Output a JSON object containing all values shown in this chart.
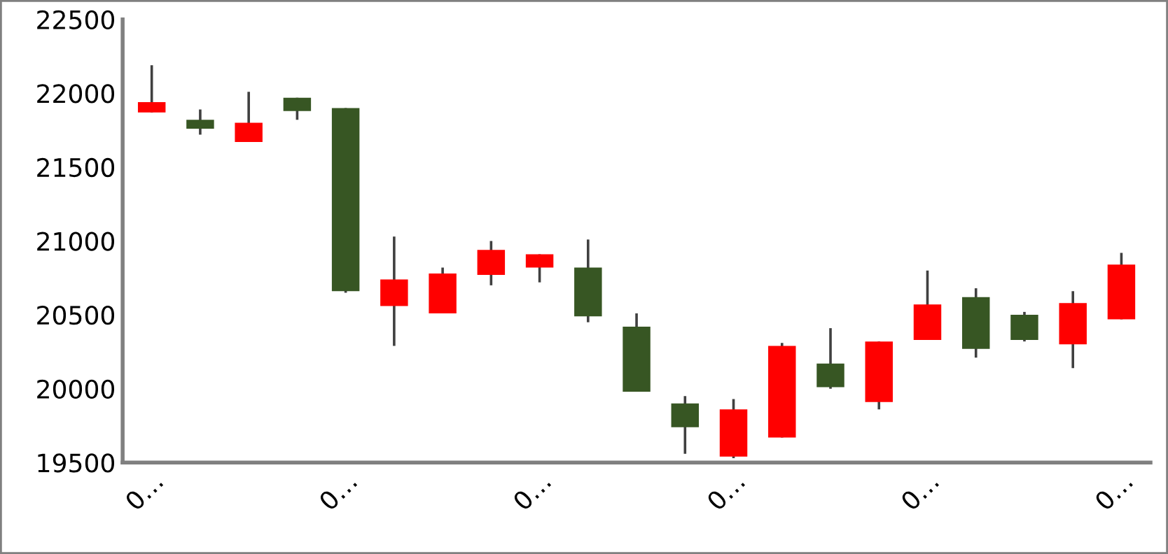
{
  "chart_data": {
    "type": "candlestick",
    "categories": [
      "0…",
      null,
      null,
      null,
      "0…",
      null,
      null,
      null,
      "0…",
      null,
      null,
      null,
      "0…",
      null,
      null,
      null,
      "0…",
      null,
      null,
      null,
      "0…"
    ],
    "ohlc": [
      [
        21870,
        22190,
        21870,
        21940
      ],
      [
        21820,
        21890,
        21720,
        21760
      ],
      [
        21670,
        22010,
        21670,
        21800
      ],
      [
        21970,
        21970,
        21820,
        21880
      ],
      [
        21900,
        21900,
        20650,
        20660
      ],
      [
        20560,
        21030,
        20290,
        20740
      ],
      [
        20510,
        20820,
        20510,
        20780
      ],
      [
        20770,
        21000,
        20700,
        20940
      ],
      [
        20820,
        20910,
        20720,
        20910
      ],
      [
        20820,
        21010,
        20450,
        20490
      ],
      [
        20420,
        20510,
        19980,
        19980
      ],
      [
        19900,
        19950,
        19560,
        19740
      ],
      [
        19540,
        19930,
        19530,
        19860
      ],
      [
        19670,
        20310,
        19670,
        20290
      ],
      [
        20170,
        20410,
        20000,
        20010
      ],
      [
        19910,
        20320,
        19860,
        20320
      ],
      [
        20330,
        20800,
        20330,
        20570
      ],
      [
        20620,
        20680,
        20210,
        20270
      ],
      [
        20500,
        20520,
        20320,
        20330
      ],
      [
        20300,
        20660,
        20140,
        20580
      ],
      [
        20470,
        20920,
        20470,
        20840
      ]
    ],
    "colors": [
      "#ff0000",
      "#375623",
      "#ff0000",
      "#375623",
      "#375623",
      "#ff0000",
      "#ff0000",
      "#ff0000",
      "#ff0000",
      "#375623",
      "#375623",
      "#375623",
      "#ff0000",
      "#ff0000",
      "#375623",
      "#ff0000",
      "#ff0000",
      "#375623",
      "#375623",
      "#ff0000",
      "#ff0000"
    ],
    "ylim": [
      19500,
      22500
    ],
    "yticks": [
      19500,
      20000,
      20500,
      21000,
      21500,
      22000,
      22500
    ],
    "grid": false,
    "legend": false
  }
}
